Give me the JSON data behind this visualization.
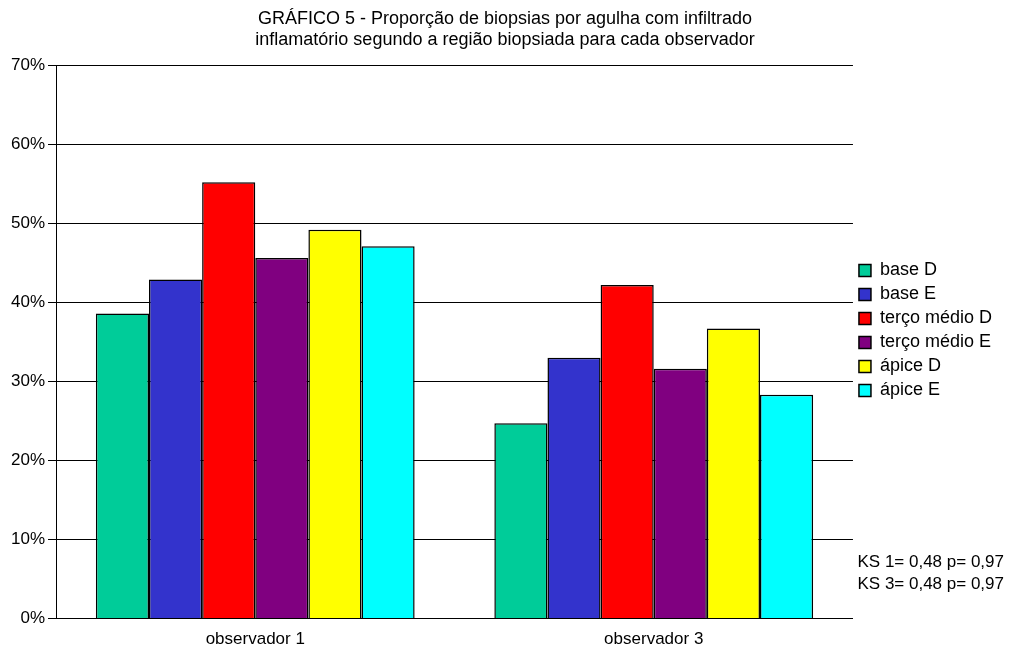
{
  "chart_data": {
    "type": "bar",
    "title": "GRÁFICO 5 - Proporção de biopsias por agulha com infiltrado\ninflamatório segundo a região biopsiada para cada observador",
    "categories": [
      "observador 1",
      "observador 3"
    ],
    "series": [
      {
        "name": "base D",
        "color": "#00cc99",
        "values": [
          38.6,
          24.7
        ]
      },
      {
        "name": "base E",
        "color": "#3333cc",
        "values": [
          42.9,
          33.0
        ]
      },
      {
        "name": "terço médio D",
        "color": "#ff0000",
        "values": [
          55.2,
          42.2
        ]
      },
      {
        "name": "terço médio E",
        "color": "#800080",
        "values": [
          45.6,
          31.6
        ]
      },
      {
        "name": "ápice D",
        "color": "#ffff00",
        "values": [
          49.2,
          36.7
        ]
      },
      {
        "name": "ápice E",
        "color": "#00ffff",
        "values": [
          47.1,
          28.3
        ]
      }
    ],
    "ylim": [
      0,
      70
    ],
    "yticks": [
      {
        "value": 0,
        "label": "0%"
      },
      {
        "value": 10,
        "label": "10%"
      },
      {
        "value": 20,
        "label": "20%"
      },
      {
        "value": 30,
        "label": "30%"
      },
      {
        "value": 40,
        "label": "40%"
      },
      {
        "value": 50,
        "label": "50%"
      },
      {
        "value": 60,
        "label": "60%"
      },
      {
        "value": 70,
        "label": "70%"
      }
    ],
    "grid": "y",
    "legend": "right",
    "annotations": [
      "KS 1= 0,48 p= 0,97",
      "KS 3= 0,48 p= 0,97"
    ]
  }
}
